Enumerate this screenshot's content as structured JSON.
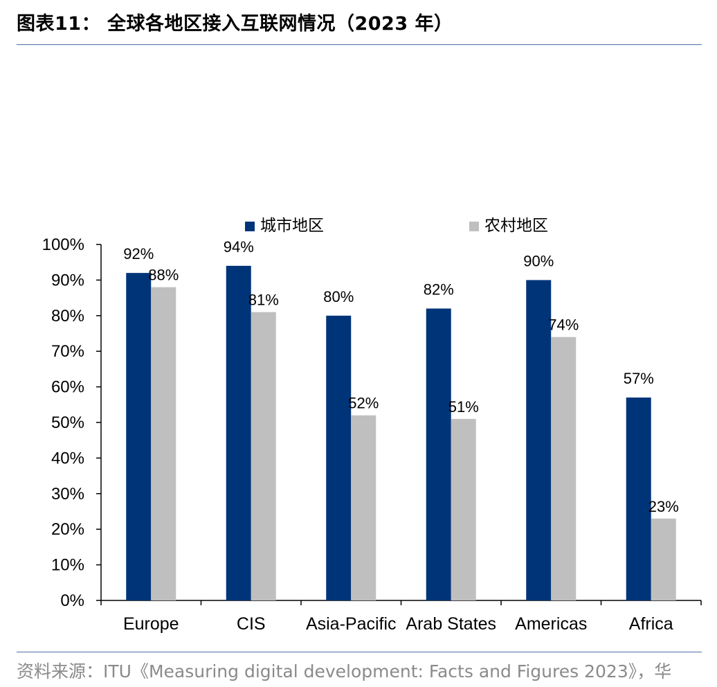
{
  "header": {
    "title": "图表11：  全球各地区接入互联网情况（2023 年）"
  },
  "footer": {
    "source": "资料来源：ITU《Measuring digital development: Facts and Figures 2023》，华"
  },
  "colors": {
    "urban": "#003479",
    "rural": "#bfbfbf",
    "rule": "#4a6fa5"
  },
  "chart_data": {
    "type": "bar",
    "categories": [
      "Europe",
      "CIS",
      "Asia-Pacific",
      "Arab States",
      "Americas",
      "Africa"
    ],
    "series": [
      {
        "name": "城市地区",
        "values": [
          92,
          94,
          80,
          82,
          90,
          57
        ],
        "labels": [
          "92%",
          "94%",
          "80%",
          "82%",
          "90%",
          "57%"
        ]
      },
      {
        "name": "农村地区",
        "values": [
          88,
          81,
          52,
          51,
          74,
          23
        ],
        "labels": [
          "88%",
          "81%",
          "52%",
          "51%",
          "74%",
          "23%"
        ]
      }
    ],
    "ylim": [
      0,
      100
    ],
    "yticks": [
      "0%",
      "10%",
      "20%",
      "30%",
      "40%",
      "50%",
      "60%",
      "70%",
      "80%",
      "90%",
      "100%"
    ],
    "legend_position": "top",
    "grid": false
  }
}
